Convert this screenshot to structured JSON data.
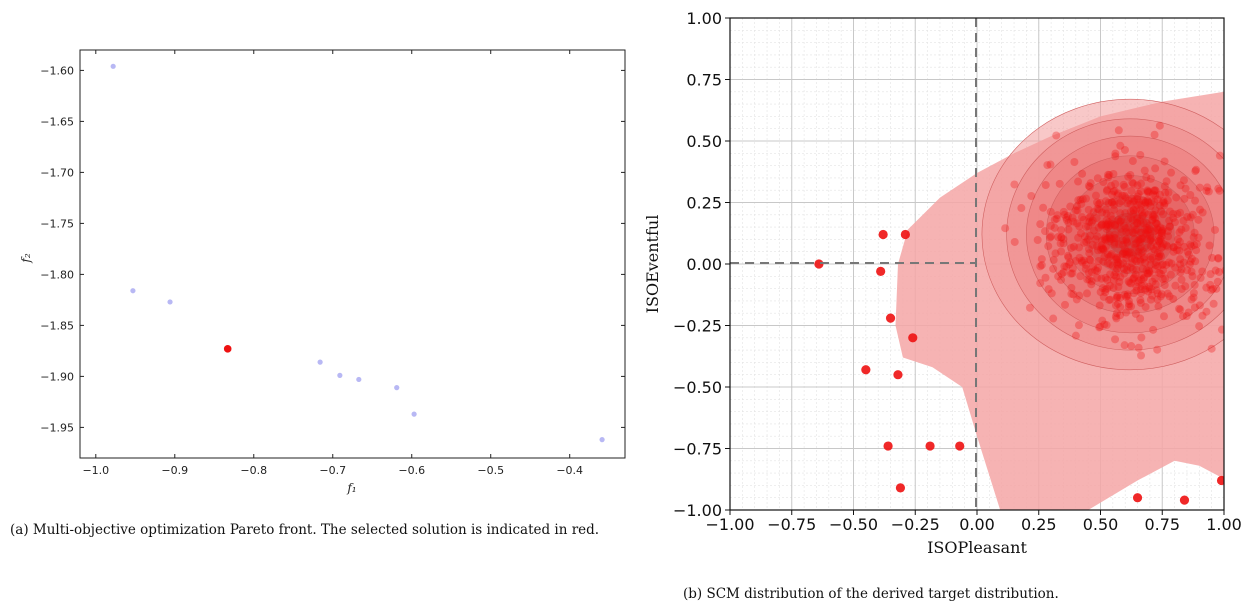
{
  "chart_data": [
    {
      "type": "scatter",
      "xlabel": "f₁",
      "ylabel": "f₂",
      "xlim": [
        -1.02,
        -0.33
      ],
      "ylim": [
        -1.98,
        -1.58
      ],
      "xticks": [
        -1.0,
        -0.9,
        -0.8,
        -0.7,
        -0.6,
        -0.5,
        -0.4
      ],
      "xtick_labels": [
        "−1.0",
        "−0.9",
        "−0.8",
        "−0.7",
        "−0.6",
        "−0.5",
        "−0.4"
      ],
      "yticks": [
        -1.6,
        -1.65,
        -1.7,
        -1.75,
        -1.8,
        -1.85,
        -1.9,
        -1.95
      ],
      "ytick_labels": [
        "−1.60",
        "−1.65",
        "−1.70",
        "−1.75",
        "−1.80",
        "−1.85",
        "−1.90",
        "−1.95"
      ],
      "grid": false,
      "series": [
        {
          "color": "#b8b8f4",
          "points": [
            [
              -0.978,
              -1.596
            ],
            [
              -0.953,
              -1.816
            ],
            [
              -0.906,
              -1.827
            ],
            [
              -0.716,
              -1.886
            ],
            [
              -0.691,
              -1.899
            ],
            [
              -0.667,
              -1.903
            ],
            [
              -0.619,
              -1.911
            ],
            [
              -0.597,
              -1.937
            ],
            [
              -0.359,
              -1.962
            ]
          ]
        },
        {
          "color": "#ee1111",
          "points": [
            [
              -0.833,
              -1.873
            ]
          ]
        }
      ],
      "caption": "(a) Multi-objective optimization Pareto front.  The selected solution is indicated in red."
    },
    {
      "type": "scatter",
      "xlabel": "ISOPleasant",
      "ylabel": "ISOEventful",
      "xlim": [
        -1.0,
        1.0
      ],
      "ylim": [
        -1.0,
        1.0
      ],
      "xticks": [
        -1.0,
        -0.75,
        -0.5,
        -0.25,
        0.0,
        0.25,
        0.5,
        0.75,
        1.0
      ],
      "xtick_labels": [
        "−1.00",
        "−0.75",
        "−0.50",
        "−0.25",
        "0.00",
        "0.25",
        "0.50",
        "0.75",
        "1.00"
      ],
      "yticks": [
        1.0,
        0.75,
        0.5,
        0.25,
        0.0,
        -0.25,
        -0.5,
        -0.75,
        -1.0
      ],
      "ytick_labels": [
        "1.00",
        "0.75",
        "0.50",
        "0.25",
        "0.00",
        "−0.25",
        "−0.50",
        "−0.75",
        "−1.00"
      ],
      "grid": true,
      "density_center": [
        0.62,
        0.12
      ],
      "outliers": [
        [
          -0.64,
          0.0
        ],
        [
          -0.38,
          0.12
        ],
        [
          -0.29,
          0.12
        ],
        [
          -0.39,
          -0.03
        ],
        [
          -0.35,
          -0.22
        ],
        [
          -0.45,
          -0.43
        ],
        [
          -0.32,
          -0.45
        ],
        [
          -0.36,
          -0.74
        ],
        [
          -0.19,
          -0.74
        ],
        [
          -0.07,
          -0.74
        ],
        [
          -0.31,
          -0.91
        ],
        [
          0.65,
          -0.95
        ],
        [
          0.84,
          -0.96
        ],
        [
          0.99,
          -0.88
        ],
        [
          -0.26,
          -0.3
        ]
      ],
      "point_color": "#ee1111",
      "caption": "(b) SCM distribution of the derived target distribution."
    }
  ]
}
